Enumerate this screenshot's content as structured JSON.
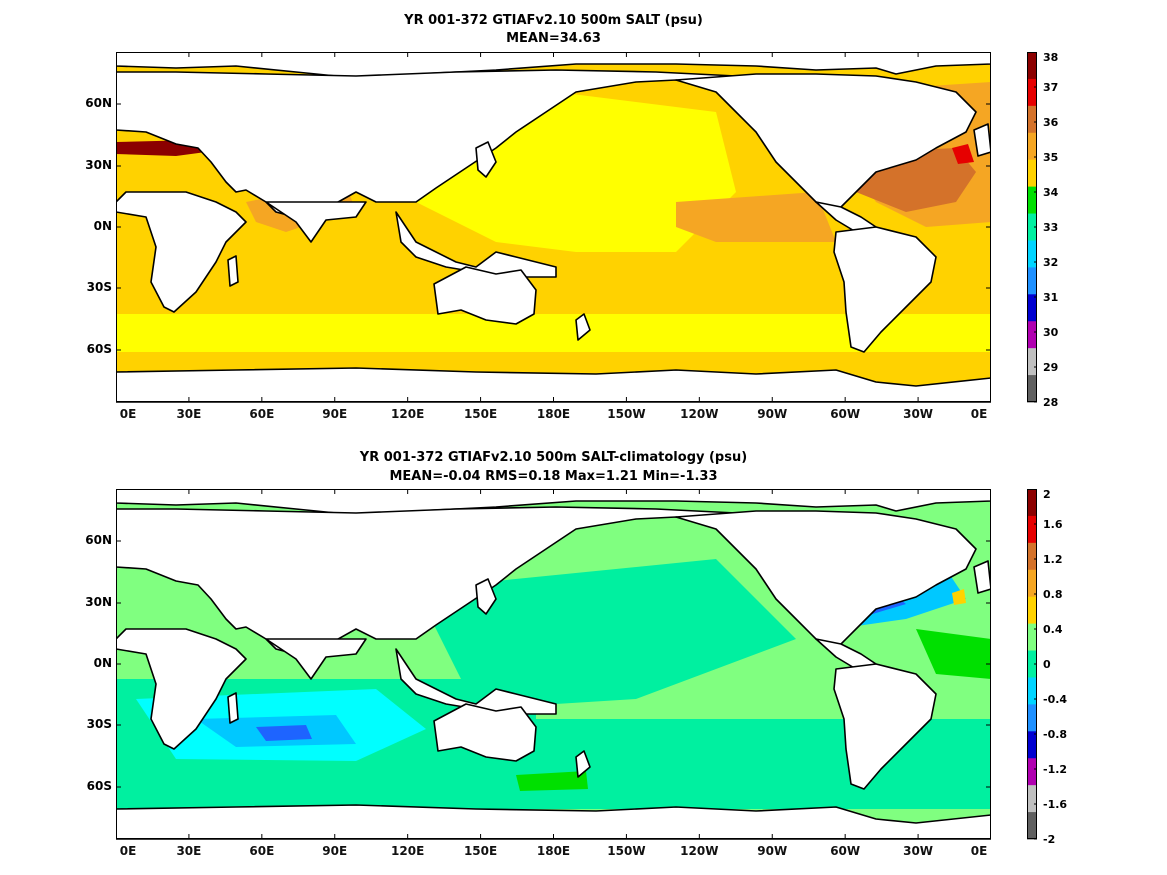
{
  "panels": [
    {
      "title": "YR 001-372 GTIAFv2.10 500m SALT (psu)",
      "subtitle": "MEAN=34.63",
      "colorbar": {
        "ticks": [
          "38",
          "37",
          "36",
          "35",
          "34",
          "33",
          "32",
          "31",
          "30",
          "29",
          "28"
        ],
        "colors": [
          "#8b0000",
          "#e60000",
          "#d4722a",
          "#f5a623",
          "#ffd200",
          "#00e000",
          "#00f0a0",
          "#00d4ff",
          "#1e90ff",
          "#0000d0",
          "#b000b0",
          "#c0c0c0",
          "#606060"
        ]
      }
    },
    {
      "title": "YR 001-372 GTIAFv2.10 500m SALT-climatology (psu)",
      "subtitle": "MEAN=-0.04   RMS=0.18   Max=1.21   Min=-1.33",
      "colorbar": {
        "ticks": [
          "2",
          "1.6",
          "1.2",
          "0.8",
          "0.4",
          "0",
          "-0.4",
          "-0.8",
          "-1.2",
          "-1.6",
          "-2"
        ],
        "colors": [
          "#8b0000",
          "#e60000",
          "#d4722a",
          "#f5a623",
          "#ffd200",
          "#80ff80",
          "#00f0a0",
          "#00d4ff",
          "#1e90ff",
          "#0000d0",
          "#b000b0",
          "#c0c0c0",
          "#606060"
        ]
      }
    }
  ],
  "axes": {
    "x_ticks": [
      "0E",
      "30E",
      "60E",
      "90E",
      "120E",
      "150E",
      "180E",
      "150W",
      "120W",
      "90W",
      "60W",
      "30W",
      "0E"
    ],
    "y_ticks": [
      "60N",
      "30N",
      "0N",
      "30S",
      "60S"
    ]
  },
  "palette": {
    "top_ocean": "#ffd200",
    "top_yellow": "#ffff00",
    "top_orange": "#f5a623",
    "top_brown": "#d4722a",
    "top_darkred": "#8b0000",
    "top_red": "#e60000",
    "top_green": "#00e000",
    "bot_ocean": "#80ff80",
    "bot_teal": "#00f0a0",
    "bot_cyan": "#00ffff",
    "bot_sky": "#00c8ff",
    "bot_blue": "#1e64ff",
    "bot_darkblue": "#0000d0",
    "bot_green": "#00e000",
    "bot_yellow": "#ffd200",
    "land": "#ffffff",
    "coast": "#000000"
  }
}
